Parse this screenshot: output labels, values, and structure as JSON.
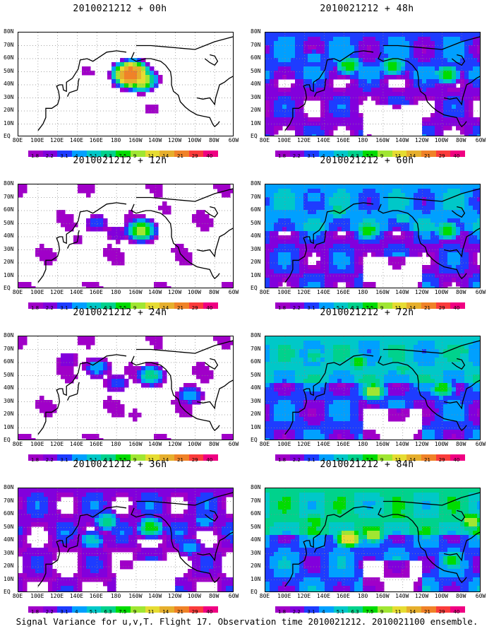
{
  "caption": "Signal Variance for u,v,T. Flight 17. Observation time 2010021212. 2010021100 ensemble.",
  "chart_data": [
    {
      "type": "heatmap",
      "title": "2010021212 + 00h",
      "lead_hours": 0,
      "blobs": [
        {
          "lon": 195,
          "lat": 48,
          "peak": 29
        },
        {
          "lon": 205,
          "lat": 44,
          "peak": 14
        },
        {
          "lon": 180,
          "lat": 40,
          "peak": 2.2
        },
        {
          "lon": 150,
          "lat": 50,
          "peak": 2.2
        },
        {
          "lon": 215,
          "lat": 22,
          "peak": 2.2
        }
      ]
    },
    {
      "type": "heatmap",
      "title": "2010021212 + 12h",
      "lead_hours": 12,
      "blobs": [
        {
          "lon": 205,
          "lat": 45,
          "peak": 11
        },
        {
          "lon": 160,
          "lat": 50,
          "peak": 4
        },
        {
          "lon": 180,
          "lat": 42,
          "peak": 3.1
        },
        {
          "lon": 140,
          "lat": 38,
          "peak": 2.2
        },
        {
          "lon": 230,
          "lat": 62,
          "peak": 2.2
        },
        {
          "lon": 150,
          "lat": 78,
          "peak": 1.8
        }
      ]
    },
    {
      "type": "heatmap",
      "title": "2010021212 + 24h",
      "lead_hours": 24,
      "blobs": [
        {
          "lon": 215,
          "lat": 50,
          "peak": 7.5
        },
        {
          "lon": 160,
          "lat": 56,
          "peak": 5.1
        },
        {
          "lon": 180,
          "lat": 44,
          "peak": 4
        },
        {
          "lon": 255,
          "lat": 35,
          "peak": 5.1
        },
        {
          "lon": 130,
          "lat": 62,
          "peak": 3.1
        },
        {
          "lon": 200,
          "lat": 20,
          "peak": 2.2
        }
      ]
    },
    {
      "type": "heatmap",
      "title": "2010021212 + 36h",
      "lead_hours": 36,
      "blobs": [
        {
          "lon": 215,
          "lat": 50,
          "peak": 9
        },
        {
          "lon": 170,
          "lat": 55,
          "peak": 7.5
        },
        {
          "lon": 155,
          "lat": 40,
          "peak": 6.3
        },
        {
          "lon": 270,
          "lat": 55,
          "peak": 5.1
        },
        {
          "lon": 255,
          "lat": 35,
          "peak": 5.1
        },
        {
          "lon": 190,
          "lat": 22,
          "peak": 2.2
        }
      ]
    },
    {
      "type": "heatmap",
      "title": "2010021212 + 48h",
      "lead_hours": 48,
      "blobs": [
        {
          "lon": 165,
          "lat": 55,
          "peak": 9
        },
        {
          "lon": 210,
          "lat": 55,
          "peak": 9
        },
        {
          "lon": 265,
          "lat": 48,
          "peak": 9
        },
        {
          "lon": 130,
          "lat": 60,
          "peak": 5.1
        },
        {
          "lon": 180,
          "lat": 40,
          "peak": 4
        },
        {
          "lon": 275,
          "lat": 70,
          "peak": 4
        }
      ]
    },
    {
      "type": "heatmap",
      "title": "2010021212 + 60h",
      "lead_hours": 60,
      "blobs": [
        {
          "lon": 185,
          "lat": 45,
          "peak": 9
        },
        {
          "lon": 265,
          "lat": 45,
          "peak": 9
        },
        {
          "lon": 155,
          "lat": 60,
          "peak": 7.5
        },
        {
          "lon": 220,
          "lat": 55,
          "peak": 6.3
        },
        {
          "lon": 130,
          "lat": 70,
          "peak": 5.1
        },
        {
          "lon": 270,
          "lat": 20,
          "peak": 4
        }
      ]
    },
    {
      "type": "heatmap",
      "title": "2010021212 + 72h",
      "lead_hours": 72,
      "blobs": [
        {
          "lon": 190,
          "lat": 38,
          "peak": 11
        },
        {
          "lon": 175,
          "lat": 60,
          "peak": 9
        },
        {
          "lon": 260,
          "lat": 40,
          "peak": 9
        },
        {
          "lon": 130,
          "lat": 65,
          "peak": 7.5
        },
        {
          "lon": 220,
          "lat": 55,
          "peak": 7.5
        },
        {
          "lon": 280,
          "lat": 70,
          "peak": 7.5
        }
      ]
    },
    {
      "type": "heatmap",
      "title": "2010021212 + 84h",
      "lead_hours": 84,
      "blobs": [
        {
          "lon": 165,
          "lat": 42,
          "peak": 14
        },
        {
          "lon": 190,
          "lat": 45,
          "peak": 11
        },
        {
          "lon": 215,
          "lat": 60,
          "peak": 9
        },
        {
          "lon": 290,
          "lat": 55,
          "peak": 11
        },
        {
          "lon": 130,
          "lat": 55,
          "peak": 9
        },
        {
          "lon": 270,
          "lat": 25,
          "peak": 9
        }
      ]
    }
  ],
  "axes": {
    "x_ticks": [
      "80E",
      "100E",
      "120E",
      "140E",
      "160E",
      "180",
      "160W",
      "140W",
      "120W",
      "100W",
      "80W",
      "60W"
    ],
    "y_ticks": [
      "EQ",
      "10N",
      "20N",
      "30N",
      "40N",
      "50N",
      "60N",
      "70N",
      "80N"
    ],
    "lon_range": [
      80,
      300
    ],
    "lat_range": [
      0,
      80
    ]
  },
  "colorbar": {
    "levels": [
      "1.8",
      "2.2",
      "3.1",
      "4",
      "5.1",
      "6.3",
      "7.5",
      "9",
      "11",
      "14",
      "21",
      "29",
      "40"
    ],
    "colors": [
      "#a000c8",
      "#8200dc",
      "#1e3cff",
      "#00a0ff",
      "#00c8c8",
      "#00d28c",
      "#00dc00",
      "#a0e632",
      "#e6dc32",
      "#e6af2d",
      "#f08228",
      "#fa3c3c",
      "#f00082"
    ]
  }
}
